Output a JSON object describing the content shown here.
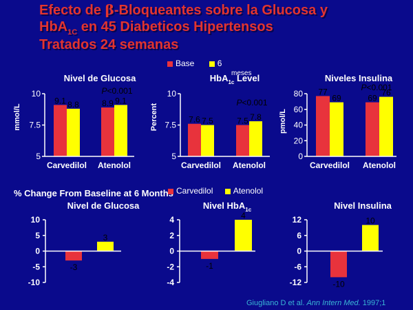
{
  "title": {
    "line1_pre": "Efecto de ",
    "line1_beta": "β",
    "line1_post": "-Bloqueantes sobre la Glucosa y",
    "line2_pre": "HbA",
    "line2_sub": "1C",
    "line2_post": " en 45  Diabeticos Hipertensos",
    "line3": "Tratados 24 semanas"
  },
  "colors": {
    "background": "#0a0a8c",
    "red": "#e8333c",
    "yellow": "#ffff00",
    "title": "#e3342f",
    "text": "#ffffff",
    "citation": "#39b6d6"
  },
  "legend_top": {
    "base_label": "Base",
    "six_label": "6",
    "months_overlay": "meses"
  },
  "legend_bottom": {
    "carvedilol_label": "Carvedilol",
    "atenolol_label": "Atenolol",
    "months_overlay": "Months"
  },
  "section_label": "% Change From Baseline at 6 Months",
  "citation": {
    "authors": "Giugliano D et al. ",
    "journal": "Ann Intern Med.",
    "year": " 1997;1"
  },
  "chart_data": [
    {
      "type": "bar",
      "title": "Nivel de Glucosa",
      "ylabel": "mmol/L",
      "ylim": [
        5,
        10
      ],
      "yticks": [
        "10",
        "7.5",
        "5"
      ],
      "categories": [
        "Carvedilol",
        "Atenolol"
      ],
      "series": [
        {
          "name": "Base",
          "values": [
            9.1,
            8.9
          ]
        },
        {
          "name": "6",
          "values": [
            8.8,
            9.1
          ]
        }
      ],
      "value_labels": [
        [
          "9.1",
          "8.8"
        ],
        [
          "8.9",
          "9.1"
        ]
      ],
      "annotation": "P<0.001",
      "annotation_over": "Atenolol"
    },
    {
      "type": "bar",
      "title_pre": "HbA",
      "title_sub": "1c",
      "title_post": " Level",
      "ylabel": "Percent",
      "ylim": [
        5,
        10
      ],
      "yticks": [
        "10",
        "7.5",
        "5"
      ],
      "categories": [
        "Carvedilol",
        "Atenolol"
      ],
      "series": [
        {
          "name": "Base",
          "values": [
            7.6,
            7.5
          ]
        },
        {
          "name": "6",
          "values": [
            7.5,
            7.8
          ]
        }
      ],
      "value_labels": [
        [
          "7.6",
          "7.5"
        ],
        [
          "7.5",
          "7.8"
        ]
      ],
      "annotation": "P<0.001",
      "annotation_over": "Atenolol"
    },
    {
      "type": "bar",
      "title": "Niveles Insulina",
      "ylabel": "pmol/L",
      "ylim": [
        0,
        80
      ],
      "yticks": [
        "80",
        "60",
        "40",
        "20",
        "0"
      ],
      "categories": [
        "Carvedilol",
        "Atenolol"
      ],
      "series": [
        {
          "name": "Base",
          "values": [
            77,
            69
          ]
        },
        {
          "name": "6",
          "values": [
            69,
            76
          ]
        }
      ],
      "value_labels": [
        [
          "77",
          "69"
        ],
        [
          "69",
          "76"
        ]
      ],
      "annotation": "P<0.001",
      "annotation_over": "Atenolol"
    },
    {
      "type": "bar",
      "title": "Nivel de Glucosa",
      "ylim": [
        -10,
        10
      ],
      "yticks": [
        "10",
        "5",
        "0",
        "-5",
        "-10"
      ],
      "categories": [
        "Carvedilol",
        "Atenolol"
      ],
      "values": [
        -3,
        3
      ],
      "value_labels": [
        "-3",
        "3"
      ]
    },
    {
      "type": "bar",
      "title_pre": "Nivel HbA",
      "title_sub": "1c",
      "title_post": "",
      "ylim": [
        -4,
        4
      ],
      "yticks": [
        "4",
        "2",
        "0",
        "-2",
        "-4"
      ],
      "categories": [
        "Carvedilol",
        "Atenolol"
      ],
      "values": [
        -1,
        4
      ],
      "value_labels": [
        "-1",
        "4"
      ]
    },
    {
      "type": "bar",
      "title": "Nivel Insulina",
      "ylim": [
        -12,
        12
      ],
      "yticks": [
        "12",
        "6",
        "0",
        "-6",
        "-12"
      ],
      "categories": [
        "Carvedilol",
        "Atenolol"
      ],
      "values": [
        -10,
        10
      ],
      "value_labels": [
        "-10",
        "10"
      ]
    }
  ]
}
